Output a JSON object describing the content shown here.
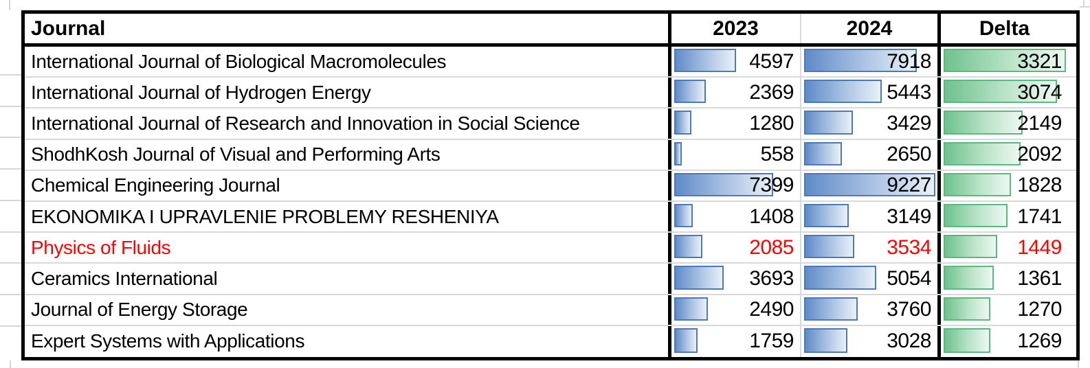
{
  "sheet": {
    "description": "Excel worksheet region showing a journal comparison table with data bars"
  },
  "header": {
    "journal": "Journal",
    "y2023": "2023",
    "y2024": "2024",
    "delta": "Delta"
  },
  "table": {
    "rows": [
      {
        "journal": "International Journal of Biological Macromolecules",
        "y2023": 4597,
        "y2024": 7918,
        "delta": 3321,
        "highlight": false
      },
      {
        "journal": "International Journal of Hydrogen Energy",
        "y2023": 2369,
        "y2024": 5443,
        "delta": 3074,
        "highlight": false
      },
      {
        "journal": "International Journal of Research and Innovation in Social Science",
        "y2023": 1280,
        "y2024": 3429,
        "delta": 2149,
        "highlight": false
      },
      {
        "journal": "ShodhKosh Journal of Visual and Performing Arts",
        "y2023": 558,
        "y2024": 2650,
        "delta": 2092,
        "highlight": false
      },
      {
        "journal": "Chemical Engineering Journal",
        "y2023": 7399,
        "y2024": 9227,
        "delta": 1828,
        "highlight": false
      },
      {
        "journal": "EKONOMIKA I UPRAVLENIE PROBLEMY RESHENIYA",
        "y2023": 1408,
        "y2024": 3149,
        "delta": 1741,
        "highlight": false
      },
      {
        "journal": "Physics of Fluids",
        "y2023": 2085,
        "y2024": 3534,
        "delta": 1449,
        "highlight": true
      },
      {
        "journal": "Ceramics International",
        "y2023": 3693,
        "y2024": 5054,
        "delta": 1361,
        "highlight": false
      },
      {
        "journal": "Journal of Energy Storage",
        "y2023": 2490,
        "y2024": 3760,
        "delta": 1270,
        "highlight": false
      },
      {
        "journal": "Expert Systems with Applications",
        "y2023": 1759,
        "y2024": 3028,
        "delta": 1269,
        "highlight": false
      }
    ]
  },
  "databars": {
    "year_columns_max": 9227,
    "delta_column_max": 3321
  },
  "colors": {
    "bar_blue": "#5f8bc8",
    "bar_blue_border": "#4d7ab7",
    "bar_green": "#6ec28c",
    "bar_green_border": "#5bb87e",
    "highlight_red": "#ff0000",
    "gridline_gray": "#d9d9d9",
    "table_border": "#000000"
  }
}
